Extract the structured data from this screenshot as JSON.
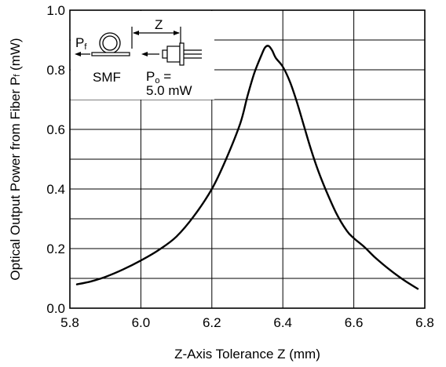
{
  "chart_data": {
    "type": "line",
    "title": "",
    "xlabel": "Z-Axis Tolerance  Z (mm)",
    "ylabel_main": "Optical Output Power from Fiber  P",
    "ylabel_sub": "f",
    "ylabel_unit": " (mW)",
    "xlim": [
      5.8,
      6.8
    ],
    "ylim": [
      0.0,
      1.0
    ],
    "x_ticks": [
      "5.8",
      "6.0",
      "6.2",
      "6.4",
      "6.6",
      "6.8"
    ],
    "y_ticks": [
      "0.0",
      "0.2",
      "0.4",
      "0.6",
      "0.8",
      "1.0"
    ],
    "grid": true,
    "series": [
      {
        "color": "#000000",
        "x": [
          5.82,
          5.86,
          5.9,
          5.95,
          6.0,
          6.05,
          6.1,
          6.15,
          6.2,
          6.24,
          6.28,
          6.3,
          6.32,
          6.34,
          6.35,
          6.36,
          6.37,
          6.38,
          6.4,
          6.42,
          6.44,
          6.46,
          6.48,
          6.5,
          6.52,
          6.55,
          6.58,
          6.6,
          6.63,
          6.66,
          6.7,
          6.74,
          6.78
        ],
        "y": [
          0.08,
          0.09,
          0.105,
          0.13,
          0.16,
          0.195,
          0.24,
          0.31,
          0.4,
          0.5,
          0.62,
          0.71,
          0.79,
          0.85,
          0.875,
          0.88,
          0.865,
          0.84,
          0.81,
          0.76,
          0.69,
          0.61,
          0.53,
          0.46,
          0.4,
          0.32,
          0.26,
          0.235,
          0.205,
          0.17,
          0.13,
          0.095,
          0.065
        ]
      }
    ]
  },
  "inset": {
    "z_label": "Z",
    "pf_main": "P",
    "pf_sub": "f",
    "smf_label": "SMF",
    "po_main": "P",
    "po_sub": "o",
    "po_eq": " =",
    "po_value": "5.0 mW"
  }
}
